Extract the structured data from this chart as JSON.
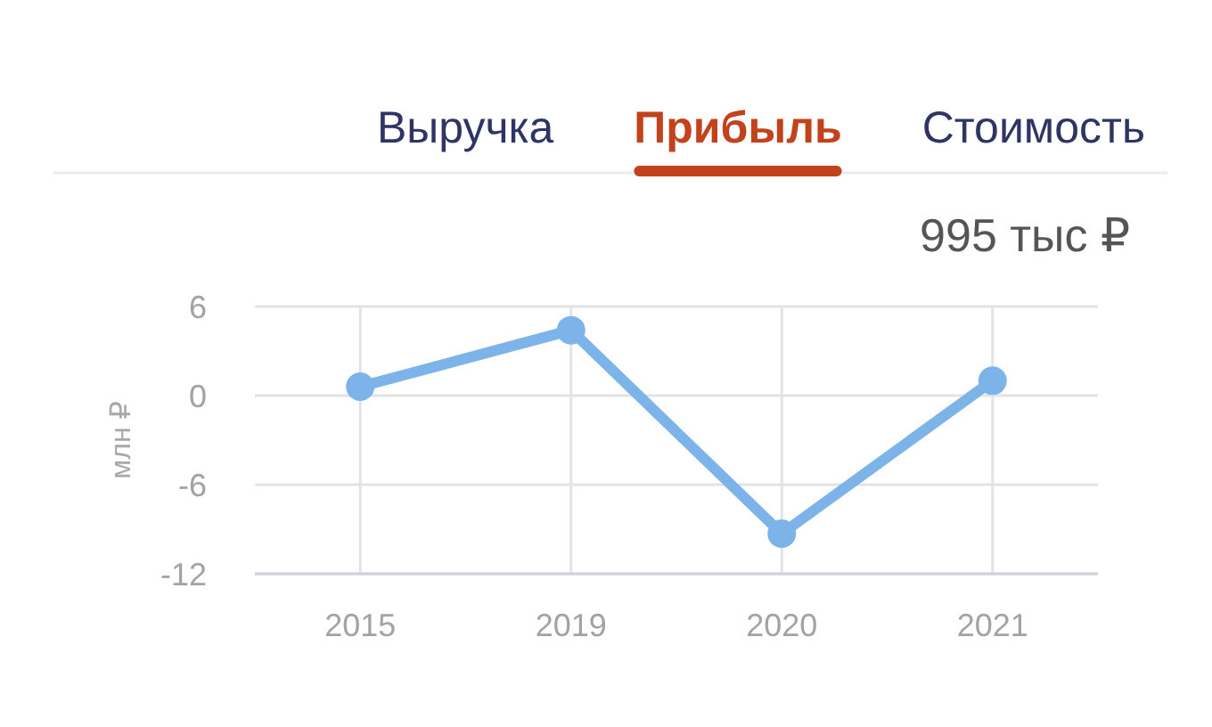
{
  "chart_data": {
    "type": "line",
    "title": "Прибыль",
    "subtitle": "995 тыс ₽",
    "annotations": [
      "Выручка",
      "Стоимость"
    ],
    "ylabel": "млн ₽",
    "categories": [
      "2015",
      "2019",
      "2020",
      "2021"
    ],
    "values": [
      0.6,
      4.4,
      -9.3,
      1.0
    ],
    "color": "#7cb4ea",
    "ylim": [
      -12,
      6
    ],
    "yticks": [
      -12,
      -6,
      0,
      6
    ],
    "grid": true,
    "marker": "circle",
    "line_style": "solid"
  }
}
